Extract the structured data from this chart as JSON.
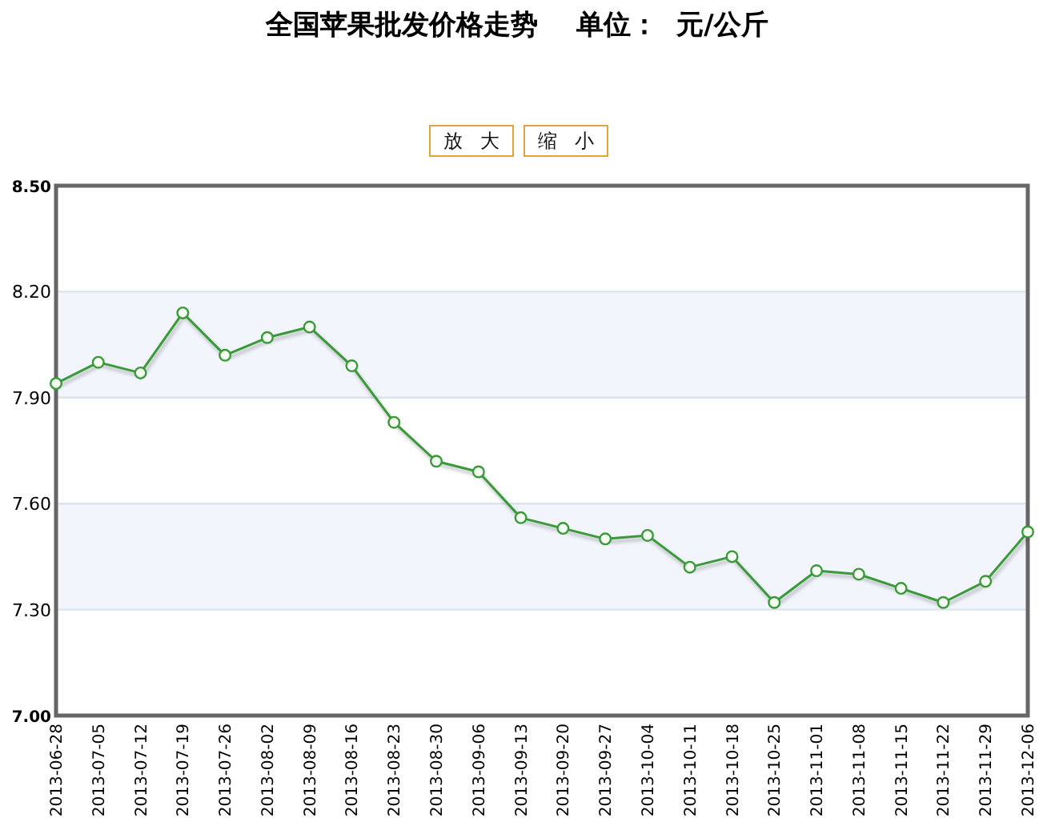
{
  "chart_data": {
    "type": "line",
    "title": "全国苹果批发价格走势    单位：  元/公斤",
    "annotations": [
      "放 大",
      "缩 小"
    ],
    "categories": [
      "2013-06-28",
      "2013-07-05",
      "2013-07-12",
      "2013-07-19",
      "2013-07-26",
      "2013-08-02",
      "2013-08-09",
      "2013-08-16",
      "2013-08-23",
      "2013-08-30",
      "2013-09-06",
      "2013-09-13",
      "2013-09-20",
      "2013-09-27",
      "2013-10-04",
      "2013-10-11",
      "2013-10-18",
      "2013-10-25",
      "2013-11-01",
      "2013-11-08",
      "2013-11-15",
      "2013-11-22",
      "2013-11-29",
      "2013-12-06"
    ],
    "series": [
      {
        "color": "#3a9a3a",
        "values": [
          7.94,
          8.0,
          7.97,
          8.14,
          8.02,
          8.07,
          8.1,
          7.99,
          7.83,
          7.72,
          7.69,
          7.56,
          7.53,
          7.5,
          7.51,
          7.42,
          7.45,
          7.32,
          7.41,
          7.4,
          7.36,
          7.32,
          7.38,
          7.52
        ]
      }
    ],
    "ylim": [
      7.0,
      8.5
    ],
    "yticks": [
      {
        "value": 7.0,
        "label": "7.00"
      },
      {
        "value": 7.3,
        "label": "7.30"
      },
      {
        "value": 7.6,
        "label": "7.60"
      },
      {
        "value": 7.9,
        "label": "7.90"
      },
      {
        "value": 8.2,
        "label": "8.20"
      },
      {
        "value": 8.5,
        "label": "8.50"
      }
    ],
    "bands": [
      {
        "axis": "y",
        "from": 7.3,
        "to": 7.6,
        "color": "#f2f6fc"
      },
      {
        "axis": "y",
        "from": 7.9,
        "to": 8.2,
        "color": "#f2f6fc"
      }
    ],
    "grid": "y",
    "marker": "circle"
  }
}
